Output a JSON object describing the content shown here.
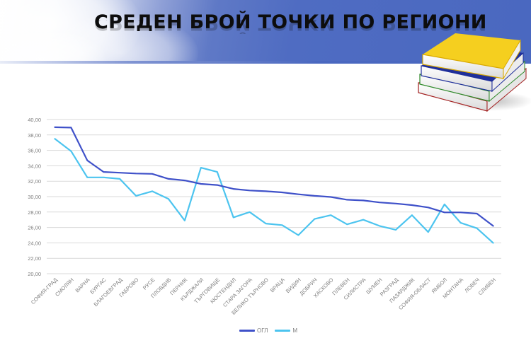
{
  "header": {
    "title": "СРЕДЕН БРОЙ ТОЧКИ ПО РЕГИОНИ"
  },
  "decoration": {
    "books_icon": "stack-of-books-icon",
    "book_colors": [
      "#f5cf1f",
      "#1f2f9a",
      "#2f8a2a",
      "#a32020"
    ]
  },
  "legend": {
    "items": [
      {
        "label": "ОГЛ",
        "color": "#3f51c9"
      },
      {
        "label": "М",
        "color": "#4cc4ef"
      }
    ]
  },
  "chart_data": {
    "type": "line",
    "title": "СРЕДЕН БРОЙ ТОЧКИ ПО РЕГИОНИ",
    "xlabel": "",
    "ylabel": "",
    "ylim": [
      20,
      40
    ],
    "yticks": [
      "20,00",
      "22,00",
      "24,00",
      "26,00",
      "28,00",
      "30,00",
      "32,00",
      "34,00",
      "36,00",
      "38,00",
      "40,00"
    ],
    "grid": true,
    "legend_position": "bottom",
    "categories": [
      "СОФИЯ-ГРАД",
      "СМОЛЯН",
      "ВАРНА",
      "БУРГАС",
      "БЛАГОЕВГРАД",
      "ГАБРОВО",
      "РУСЕ",
      "ПЛОВДИВ",
      "ПЕРНИК",
      "КЪРДЖАЛИ",
      "ТЪРГОВИЩЕ",
      "КЮСТЕНДИЛ",
      "СТАРА ЗАГОРА",
      "ВЕЛИКО ТЪРНОВО",
      "ВРАЦА",
      "ВИДИН",
      "ДОБРИЧ",
      "ХАСКОВО",
      "ПЛЕВЕН",
      "СИЛИСТРА",
      "ШУМЕН",
      "РАЗГРАД",
      "ПАЗАРДЖИК",
      "СОФИЯ-ОБЛАСТ",
      "ЯМБОЛ",
      "МОНТАНА",
      "ЛОВЕЧ",
      "СЛИВЕН"
    ],
    "series": [
      {
        "name": "ОГЛ",
        "color": "#3f51c9",
        "values": [
          39.0,
          38.95,
          34.7,
          33.2,
          33.1,
          33.0,
          32.95,
          32.3,
          32.1,
          31.65,
          31.5,
          31.0,
          30.8,
          30.7,
          30.55,
          30.3,
          30.1,
          29.95,
          29.6,
          29.5,
          29.25,
          29.1,
          28.9,
          28.6,
          27.95,
          27.95,
          27.8,
          26.2
        ]
      },
      {
        "name": "М",
        "color": "#4cc4ef",
        "values": [
          37.5,
          35.9,
          32.5,
          32.5,
          32.3,
          30.1,
          30.7,
          29.7,
          26.9,
          33.75,
          33.2,
          27.3,
          28.0,
          26.5,
          26.3,
          25.0,
          27.1,
          27.6,
          26.4,
          27.0,
          26.2,
          25.7,
          27.6,
          25.4,
          29.0,
          26.6,
          25.9,
          24.0
        ]
      }
    ]
  }
}
